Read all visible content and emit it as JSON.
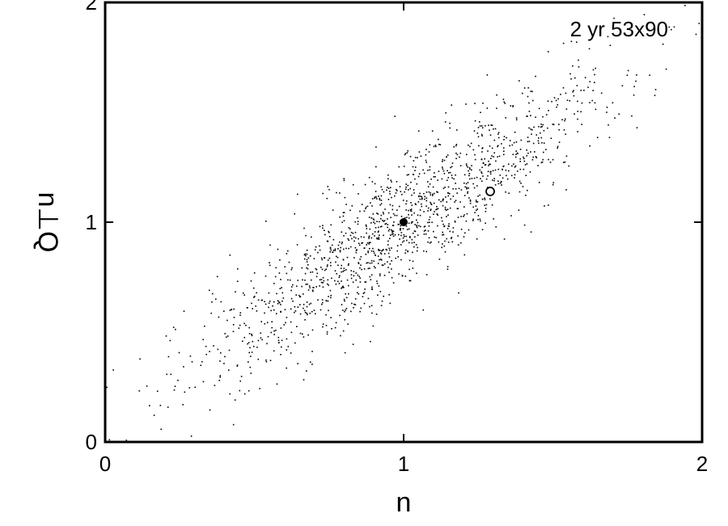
{
  "chart_data": {
    "type": "scatter",
    "title": "",
    "annotation": "2 yr 53x90",
    "xlabel": "n",
    "ylabel": "n⊥Q",
    "xlim": [
      0,
      2
    ],
    "ylim": [
      0,
      2
    ],
    "xticks": [
      "0",
      "1",
      "2"
    ],
    "yticks": [
      "0",
      "1",
      "2"
    ],
    "grid": false,
    "series": [
      {
        "marker": "dot",
        "n_points": 1500,
        "center": [
          1.0,
          1.0
        ],
        "slope": 1.0,
        "std_along": 0.34,
        "std_across": 0.11,
        "x_range": [
          0,
          2
        ],
        "y_range": [
          0,
          2
        ],
        "color": "#000000"
      }
    ],
    "highlights": [
      {
        "marker": "filled-circle",
        "x": 1.0,
        "y": 1.0
      },
      {
        "marker": "open-circle",
        "x": 1.29,
        "y": 1.14
      }
    ]
  }
}
